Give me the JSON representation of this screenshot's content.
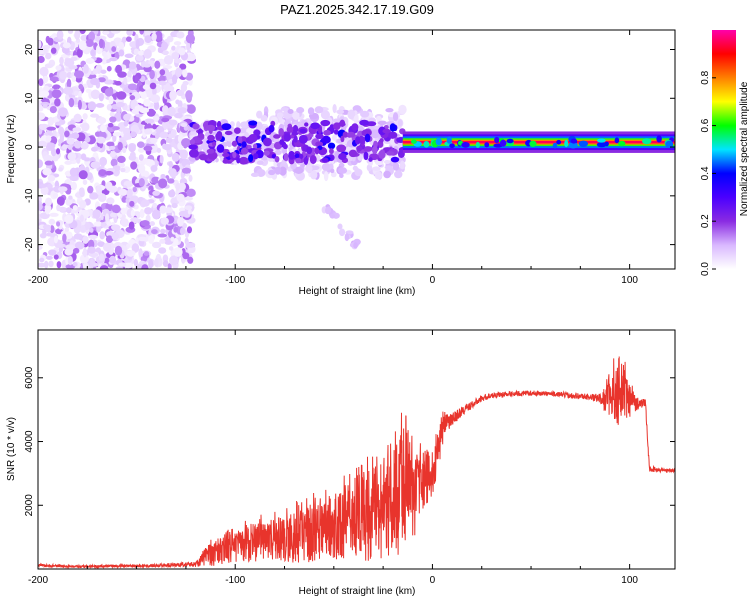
{
  "figure_title": "PAZ1.2025.342.17.19.G09",
  "chart_data": [
    {
      "type": "heatmap",
      "title": "PAZ1.2025.342.17.19.G09",
      "xlabel": "Height of straight line (km)",
      "ylabel": "Frequency (Hz)",
      "xlim": [
        -200,
        123
      ],
      "ylim": [
        -25,
        24
      ],
      "x_ticks": [
        "-200",
        "-100",
        "0",
        "100"
      ],
      "x_tick_values": [
        -200,
        -100,
        0,
        100
      ],
      "y_ticks": [
        "-20",
        "-10",
        "0",
        "10",
        "20"
      ],
      "y_tick_values": [
        -20,
        -10,
        0,
        10,
        20
      ],
      "colorbar": {
        "label": "Normalized spectral amplitude",
        "range": [
          0,
          1
        ],
        "ticks": [
          "0.0",
          "0.2",
          "0.4",
          "0.6",
          "0.8"
        ],
        "tick_values": [
          0,
          0.2,
          0.4,
          0.6,
          0.8
        ],
        "colors": [
          "#ffffff",
          "#d9b8ff",
          "#8a2be2",
          "#4b00ff",
          "#0000ff",
          "#00e5ff",
          "#00ff00",
          "#ffff00",
          "#ff8000",
          "#ff0000",
          "#ff00aa"
        ]
      },
      "regions": [
        {
          "name": "noise",
          "x_range": [
            -200,
            -122
          ],
          "freq_range": [
            -25,
            24
          ],
          "amplitude": 0.05
        },
        {
          "name": "scatter",
          "x_range": [
            -122,
            -15
          ],
          "freq_range": [
            -12,
            8
          ],
          "amplitude": 0.2
        },
        {
          "name": "tail",
          "x_range": [
            -60,
            -30
          ],
          "freq_range": [
            -22,
            -10
          ],
          "amplitude": 0.05
        },
        {
          "name": "main_tone",
          "x_range": [
            -15,
            123
          ],
          "freq_center": 1,
          "amplitude": 0.95
        }
      ]
    },
    {
      "type": "line",
      "xlabel": "Height of straight line (km)",
      "ylabel": "SNR (10 * v/v)",
      "xlim": [
        -200,
        123
      ],
      "ylim": [
        0,
        7500
      ],
      "x_ticks": [
        "-200",
        "-100",
        "0",
        "100"
      ],
      "x_tick_values": [
        -200,
        -100,
        0,
        100
      ],
      "y_ticks": [
        "2000",
        "4000",
        "6000"
      ],
      "y_tick_values": [
        2000,
        4000,
        6000
      ],
      "color": "#e8342c",
      "series": [
        {
          "name": "SNR",
          "x": [
            -200,
            -180,
            -160,
            -140,
            -120,
            -115,
            -110,
            -100,
            -90,
            -80,
            -70,
            -60,
            -50,
            -40,
            -30,
            -20,
            -15,
            -12,
            -10,
            -5,
            0,
            3,
            5,
            10,
            15,
            20,
            25,
            30,
            40,
            50,
            60,
            70,
            80,
            85,
            90,
            95,
            100,
            105,
            108,
            110,
            115,
            120,
            123
          ],
          "y": [
            120,
            80,
            90,
            110,
            150,
            400,
            500,
            700,
            800,
            900,
            1000,
            1100,
            1300,
            1500,
            1700,
            2000,
            2500,
            2900,
            2200,
            2700,
            3000,
            3700,
            4300,
            4700,
            4950,
            5150,
            5350,
            5450,
            5500,
            5520,
            5500,
            5450,
            5400,
            5350,
            5300,
            5700,
            5250,
            5200,
            5200,
            3150,
            3100,
            3100,
            3100
          ],
          "noise_amplitude": [
            40,
            40,
            40,
            50,
            80,
            300,
            400,
            500,
            600,
            700,
            800,
            900,
            1000,
            1200,
            1500,
            1800,
            1900,
            1700,
            1500,
            900,
            700,
            600,
            500,
            200,
            150,
            120,
            100,
            90,
            80,
            80,
            80,
            90,
            100,
            150,
            700,
            1200,
            500,
            150,
            120,
            100,
            60,
            60,
            60
          ]
        }
      ]
    }
  ]
}
